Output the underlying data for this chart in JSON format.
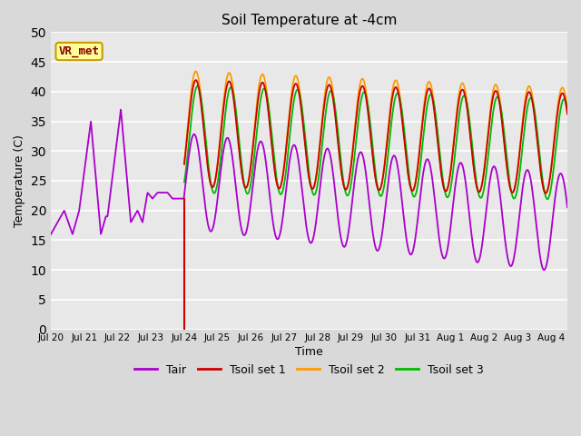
{
  "title": "Soil Temperature at -4cm",
  "xlabel": "Time",
  "ylabel": "Temperature (C)",
  "ylim": [
    0,
    50
  ],
  "yticks": [
    0,
    5,
    10,
    15,
    20,
    25,
    30,
    35,
    40,
    45,
    50
  ],
  "fig_bg_color": "#d9d9d9",
  "plot_bg_color": "#e8e8e8",
  "grid_color": "white",
  "annotation_text": "VR_met",
  "annotation_box_facecolor": "#ffff99",
  "annotation_box_edgecolor": "#cc9900",
  "annotation_text_color": "#8b0000",
  "colors": {
    "Tair": "#aa00cc",
    "Tsoil1": "#cc0000",
    "Tsoil2": "#ff9900",
    "Tsoil3": "#00bb00"
  },
  "split_day": 4.0,
  "n_days": 15.5,
  "xtick_days": [
    0,
    1,
    2,
    3,
    4,
    5,
    6,
    7,
    8,
    9,
    10,
    11,
    12,
    13,
    14,
    15
  ],
  "xtick_labels": [
    "Jul 20",
    "Jul 21",
    "Jul 22",
    "Jul 23",
    "Jul 24",
    "Jul 25",
    "Jul 26",
    "Jul 27",
    "Jul 28",
    "Jul 29",
    "Jul 30",
    "Jul 31",
    "Aug 1",
    "Aug 2",
    "Aug 3",
    "Aug 4"
  ]
}
